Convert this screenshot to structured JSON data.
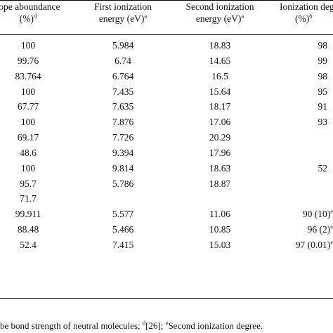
{
  "headers": {
    "col1_line1": "tope aboundance",
    "col1_line2": "(%)",
    "col1_line2_sup": "d",
    "col2_line1": "First ionization",
    "col2_line2": "energy (eV)",
    "col2_line2_sup": "a",
    "col3_line1": "Second ionization",
    "col3_line2": "energy (eV)",
    "col3_line2_sup": "a",
    "col4_line1": "Ionization deg",
    "col4_line2": "(%)",
    "col4_line2_sup": "b"
  },
  "rows": [
    {
      "abundance": "100",
      "first": "5.984",
      "second": "18.83",
      "degree": "98",
      "degree_sup": ""
    },
    {
      "abundance": "99.76",
      "first": "6.74",
      "second": "14.65",
      "degree": "99",
      "degree_sup": ""
    },
    {
      "abundance": "83.764",
      "first": "6.764",
      "second": "16.5",
      "degree": "98",
      "degree_sup": ""
    },
    {
      "abundance": "100",
      "first": "7.435",
      "second": "15.64",
      "degree": "95",
      "degree_sup": ""
    },
    {
      "abundance": "67.77",
      "first": "7.635",
      "second": "18.17",
      "degree": "91",
      "degree_sup": ""
    },
    {
      "abundance": "100",
      "first": "7.876",
      "second": "17.06",
      "degree": "93",
      "degree_sup": ""
    },
    {
      "abundance": "69.17",
      "first": "7.726",
      "second": "20.29",
      "degree": "",
      "degree_sup": ""
    },
    {
      "abundance": "48.6",
      "first": "9.394",
      "second": "17.96",
      "degree": "",
      "degree_sup": ""
    },
    {
      "abundance": "100",
      "first": "9.814",
      "second": "18.63",
      "degree": "52",
      "degree_sup": ""
    },
    {
      "abundance": "95.7",
      "first": "5.786",
      "second": "18.87",
      "degree": "",
      "degree_sup": ""
    },
    {
      "abundance": "71.7",
      "first": "",
      "second": "",
      "degree": "",
      "degree_sup": ""
    },
    {
      "abundance": "99.911",
      "first": "5.577",
      "second": "11.06",
      "degree": "90 (10)",
      "degree_sup": "e"
    },
    {
      "abundance": "88.48",
      "first": "5.466",
      "second": "10.85",
      "degree": "96 (2)",
      "degree_sup": "e"
    },
    {
      "abundance": "52.4",
      "first": "7.415",
      "second": "15.03",
      "degree": "97 (0.01)",
      "degree_sup": "e"
    }
  ],
  "footnote": {
    "part1": "be bond strength of neutral molecules; ",
    "sup_d": "d",
    "part2": "[26]; ",
    "sup_e": "e",
    "part3": "Second ionization degree."
  }
}
